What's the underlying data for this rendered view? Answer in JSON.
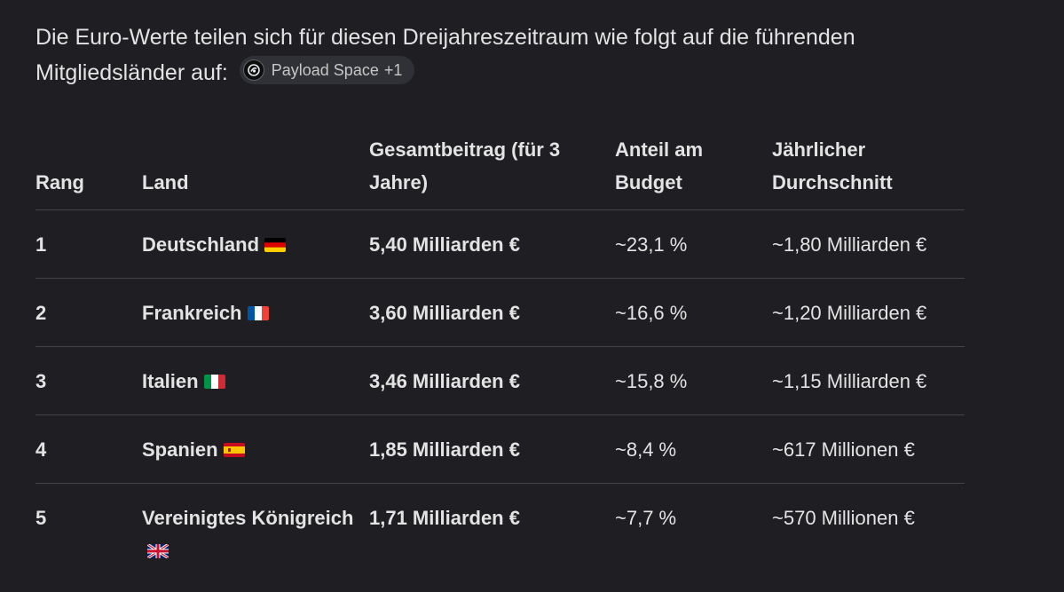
{
  "intro": {
    "text": "Die Euro-Werte teilen sich für diesen Dreijahreszeitraum wie folgt auf die führenden Mitgliedsländer auf:",
    "source_chip": {
      "label": "Payload Space",
      "count": "+1",
      "icon": "payload-space-logo-icon"
    }
  },
  "table": {
    "headers": {
      "rank": "Rang",
      "country": "Land",
      "total": "Gesamtbeitrag (für 3 Jahre)",
      "share": "Anteil am Budget",
      "annual": "Jährlicher Durchschnitt"
    },
    "rows": [
      {
        "rank": "1",
        "country": "Deutschland",
        "flag": "germany-flag-icon",
        "total": "5,40 Milliarden €",
        "share": "~23,1 %",
        "annual": "~1,80 Milliarden €"
      },
      {
        "rank": "2",
        "country": "Frankreich",
        "flag": "france-flag-icon",
        "total": "3,60 Milliarden €",
        "share": "~16,6 %",
        "annual": "~1,20 Milliarden €"
      },
      {
        "rank": "3",
        "country": "Italien",
        "flag": "italy-flag-icon",
        "total": "3,46 Milliarden €",
        "share": "~15,8 %",
        "annual": "~1,15 Milliarden €"
      },
      {
        "rank": "4",
        "country": "Spanien",
        "flag": "spain-flag-icon",
        "total": "1,85 Milliarden €",
        "share": "~8,4 %",
        "annual": "~617 Millionen €"
      },
      {
        "rank": "5",
        "country": "Vereinigtes Königreich",
        "flag": "uk-flag-icon",
        "total": "1,71 Milliarden €",
        "share": "~7,7 %",
        "annual": "~570 Millionen €"
      }
    ]
  },
  "colors": {
    "background": "#1f1f23",
    "text": "#e3e3e3",
    "divider": "#444548",
    "chip_background": "#303136"
  }
}
